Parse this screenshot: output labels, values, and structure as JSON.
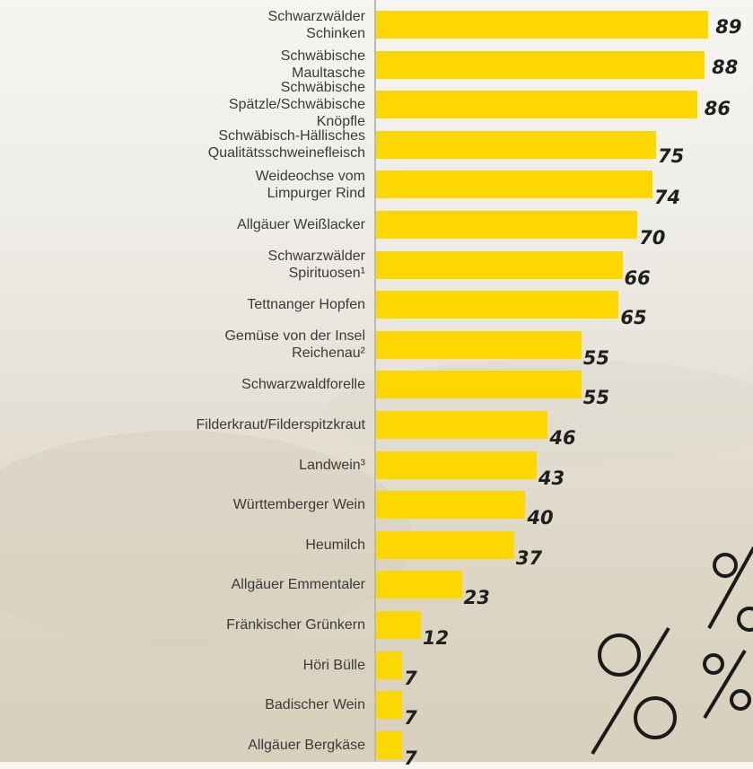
{
  "chart_data": {
    "type": "bar",
    "orientation": "horizontal",
    "color": "#fcd800",
    "categories": [
      "Schwarzwälder Schinken",
      "Schwäbische Maultasche",
      "Schwäbische Spätzle/Schwäbische Knöpfle",
      "Schwäbisch-Hällisches Qualitätsschweinefleisch",
      "Weideochse vom Limpurger Rind",
      "Allgäuer Weißlacker",
      "Schwarzwälder Spirituosen¹",
      "Tettnanger Hopfen",
      "Gemüse von der Insel Reichenau²",
      "Schwarzwaldforelle",
      "Filderkraut/Filderspitzkraut",
      "Landwein³",
      "Württemberger Wein",
      "Heumilch",
      "Allgäuer Emmentaler",
      "Fränkischer Grünkern",
      "Höri Bülle",
      "Badischer Wein",
      "Allgäuer Bergkäse"
    ],
    "values": [
      89,
      88,
      86,
      75,
      74,
      70,
      66,
      65,
      55,
      55,
      46,
      43,
      40,
      37,
      23,
      12,
      7,
      7,
      7
    ]
  }
}
